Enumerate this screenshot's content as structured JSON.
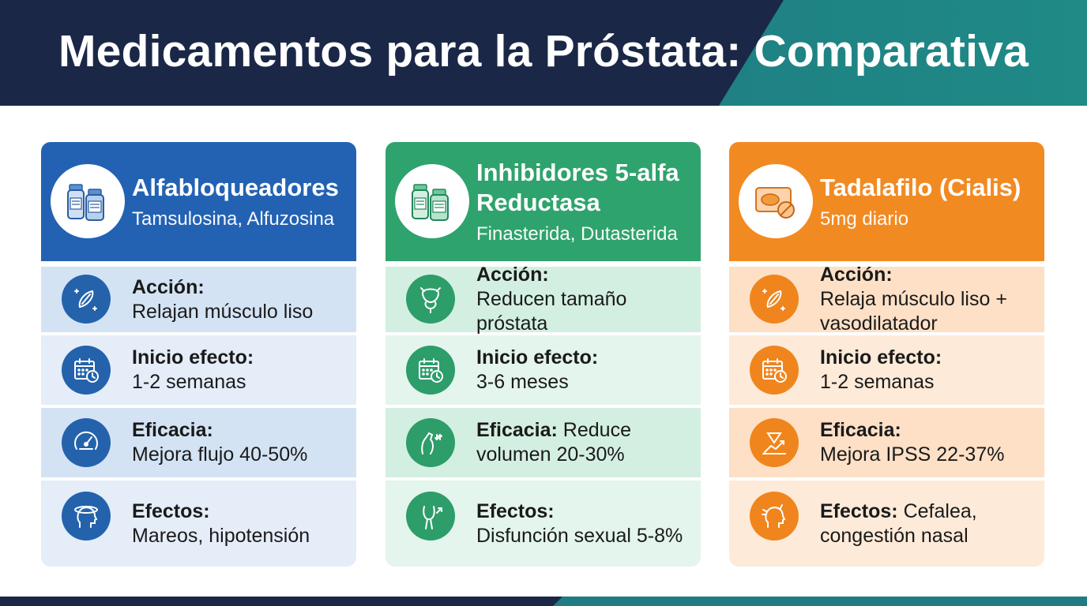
{
  "title": "Medicamentos para la Próstata: Comparativa",
  "colors": {
    "navy": "#1b2747",
    "teal": "#1f7c82",
    "blue": "#2362b3",
    "green": "#2fa36d",
    "orange": "#f28a22"
  },
  "columns": [
    {
      "title": "Alfabloqueadores",
      "subtitle": "Tamsulosina, Alfuzosina",
      "icon": "medicine-bottles-icon",
      "rows": [
        {
          "label": "Acción:",
          "value": "Relajan músculo liso",
          "icon": "muscle-icon"
        },
        {
          "label": "Inicio efecto:",
          "value": "1-2 semanas",
          "icon": "calendar-clock-icon"
        },
        {
          "label": "Eficacia:",
          "value": "Mejora flujo 40-50%",
          "icon": "gauge-icon"
        },
        {
          "label": "Efectos:",
          "value": "Mareos, hipotensión",
          "icon": "dizzy-head-icon"
        }
      ]
    },
    {
      "title": "Inhibidores 5-alfa Reductasa",
      "subtitle": "Finasterida, Dutasterida",
      "icon": "medicine-bottles-icon",
      "rows": [
        {
          "label": "Acción:",
          "value": "Reducen tamaño próstata",
          "icon": "prostate-icon"
        },
        {
          "label": "Inicio efecto:",
          "value": "3-6 meses",
          "icon": "calendar-clock-icon"
        },
        {
          "label": "Eficacia:",
          "value": "Reduce volumen 20-30%",
          "icon": "volume-reduction-icon"
        },
        {
          "label": "Efectos:",
          "value": "Disfunción sexual 5-8%",
          "icon": "male-body-icon"
        }
      ]
    },
    {
      "title": "Tadalafilo (Cialis)",
      "subtitle": "5mg diario",
      "icon": "pill-pack-icon",
      "rows": [
        {
          "label": "Acción:",
          "value": "Relaja músculo liso + vasodilatador",
          "icon": "muscle-icon"
        },
        {
          "label": "Inicio efecto:",
          "value": "1-2 semanas",
          "icon": "calendar-clock-icon"
        },
        {
          "label": "Eficacia:",
          "value": "Mejora IPSS 22-37%",
          "icon": "chart-arrow-icon"
        },
        {
          "label": "Efectos:",
          "value": "Cefalea, congestión nasal",
          "icon": "headache-icon"
        }
      ]
    }
  ]
}
